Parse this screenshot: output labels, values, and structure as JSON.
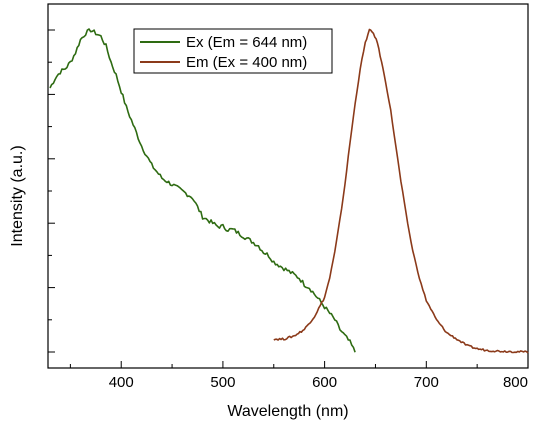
{
  "chart_data": {
    "type": "line",
    "title": "",
    "xlabel": "Wavelength (nm)",
    "ylabel": "Intensity (a.u.)",
    "xlim": [
      328,
      800
    ],
    "ylim": [
      0,
      1
    ],
    "x_ticks": [
      400,
      500,
      600,
      700,
      800
    ],
    "y_tick_labels_shown": false,
    "grid": false,
    "legend_position": "top-center",
    "series": [
      {
        "name": "Ex (Em = 644 nm)",
        "color": "#2e6b12",
        "points": [
          [
            330,
            0.82
          ],
          [
            335,
            0.85
          ],
          [
            340,
            0.87
          ],
          [
            345,
            0.88
          ],
          [
            350,
            0.9
          ],
          [
            355,
            0.93
          ],
          [
            360,
            0.97
          ],
          [
            365,
            0.99
          ],
          [
            370,
            1.0
          ],
          [
            375,
            0.99
          ],
          [
            380,
            0.98
          ],
          [
            385,
            0.95
          ],
          [
            390,
            0.9
          ],
          [
            395,
            0.86
          ],
          [
            400,
            0.81
          ],
          [
            405,
            0.76
          ],
          [
            410,
            0.72
          ],
          [
            415,
            0.68
          ],
          [
            420,
            0.64
          ],
          [
            425,
            0.61
          ],
          [
            430,
            0.58
          ],
          [
            435,
            0.56
          ],
          [
            440,
            0.54
          ],
          [
            445,
            0.53
          ],
          [
            450,
            0.52
          ],
          [
            455,
            0.51
          ],
          [
            460,
            0.5
          ],
          [
            465,
            0.49
          ],
          [
            470,
            0.48
          ],
          [
            475,
            0.45
          ],
          [
            480,
            0.42
          ],
          [
            485,
            0.41
          ],
          [
            490,
            0.4
          ],
          [
            495,
            0.39
          ],
          [
            500,
            0.39
          ],
          [
            505,
            0.38
          ],
          [
            510,
            0.38
          ],
          [
            515,
            0.37
          ],
          [
            520,
            0.36
          ],
          [
            525,
            0.35
          ],
          [
            530,
            0.34
          ],
          [
            535,
            0.33
          ],
          [
            540,
            0.31
          ],
          [
            545,
            0.3
          ],
          [
            550,
            0.28
          ],
          [
            555,
            0.27
          ],
          [
            560,
            0.26
          ],
          [
            565,
            0.25
          ],
          [
            570,
            0.24
          ],
          [
            575,
            0.23
          ],
          [
            580,
            0.21
          ],
          [
            585,
            0.2
          ],
          [
            590,
            0.18
          ],
          [
            595,
            0.16
          ],
          [
            600,
            0.14
          ],
          [
            605,
            0.12
          ],
          [
            610,
            0.1
          ],
          [
            615,
            0.07
          ],
          [
            620,
            0.05
          ],
          [
            625,
            0.03
          ],
          [
            630,
            0.0
          ]
        ]
      },
      {
        "name": "Em (Ex = 400 nm)",
        "color": "#8b3a1a",
        "points": [
          [
            550,
            0.04
          ],
          [
            560,
            0.04
          ],
          [
            570,
            0.05
          ],
          [
            580,
            0.07
          ],
          [
            590,
            0.11
          ],
          [
            600,
            0.17
          ],
          [
            605,
            0.23
          ],
          [
            610,
            0.31
          ],
          [
            615,
            0.41
          ],
          [
            620,
            0.52
          ],
          [
            625,
            0.65
          ],
          [
            630,
            0.77
          ],
          [
            635,
            0.88
          ],
          [
            640,
            0.96
          ],
          [
            644,
            1.0
          ],
          [
            648,
            0.99
          ],
          [
            652,
            0.96
          ],
          [
            656,
            0.9
          ],
          [
            660,
            0.84
          ],
          [
            665,
            0.75
          ],
          [
            670,
            0.64
          ],
          [
            675,
            0.53
          ],
          [
            680,
            0.43
          ],
          [
            685,
            0.34
          ],
          [
            690,
            0.27
          ],
          [
            695,
            0.21
          ],
          [
            700,
            0.16
          ],
          [
            710,
            0.1
          ],
          [
            720,
            0.06
          ],
          [
            730,
            0.04
          ],
          [
            740,
            0.02
          ],
          [
            750,
            0.01
          ],
          [
            760,
            0.005
          ],
          [
            770,
            0.003
          ],
          [
            780,
            0.002
          ],
          [
            790,
            0.001
          ],
          [
            800,
            0.0
          ]
        ]
      }
    ]
  }
}
